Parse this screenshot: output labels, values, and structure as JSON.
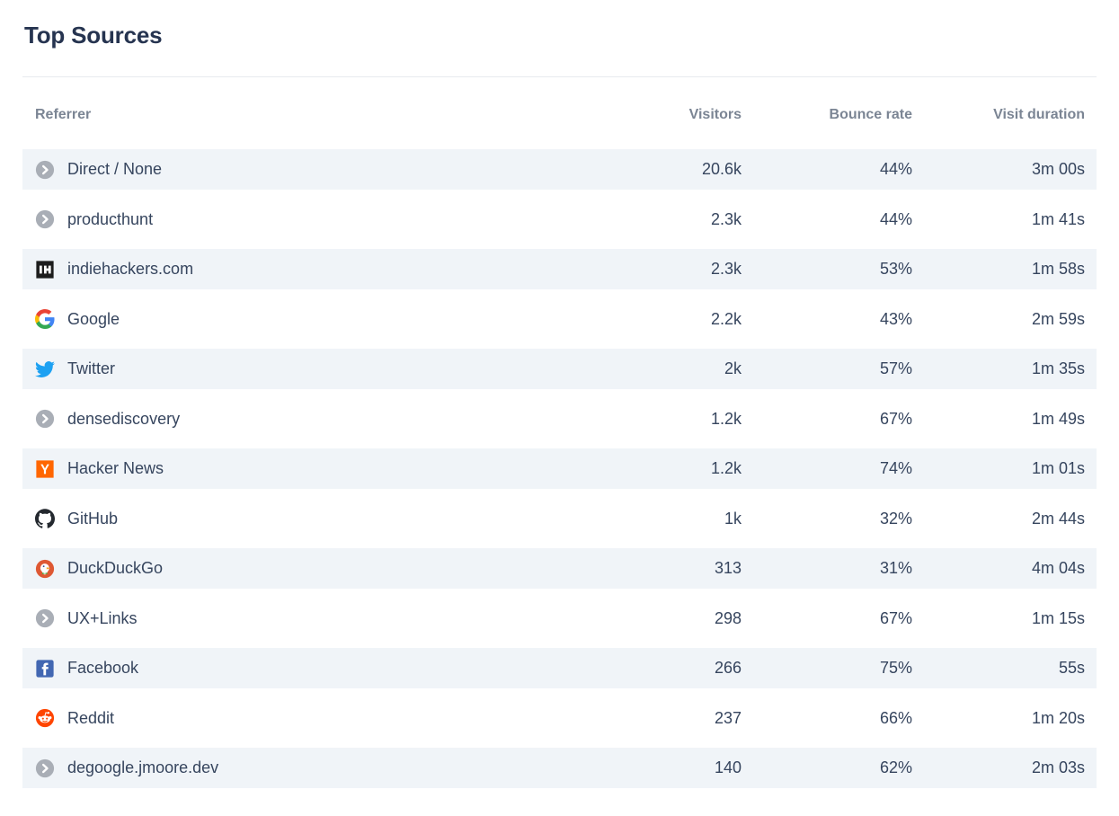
{
  "header": {
    "title": "Top Sources"
  },
  "table": {
    "columns": [
      "Referrer",
      "Visitors",
      "Bounce rate",
      "Visit duration"
    ],
    "rows": [
      {
        "referrer": "Direct / None",
        "icon": "chevron-circle",
        "visitors": "20.6k",
        "bounce_rate": "44%",
        "visit_duration": "3m 00s"
      },
      {
        "referrer": "producthunt",
        "icon": "chevron-circle",
        "visitors": "2.3k",
        "bounce_rate": "44%",
        "visit_duration": "1m 41s"
      },
      {
        "referrer": "indiehackers.com",
        "icon": "indiehackers",
        "visitors": "2.3k",
        "bounce_rate": "53%",
        "visit_duration": "1m 58s"
      },
      {
        "referrer": "Google",
        "icon": "google",
        "visitors": "2.2k",
        "bounce_rate": "43%",
        "visit_duration": "2m 59s"
      },
      {
        "referrer": "Twitter",
        "icon": "twitter",
        "visitors": "2k",
        "bounce_rate": "57%",
        "visit_duration": "1m 35s"
      },
      {
        "referrer": "densediscovery",
        "icon": "chevron-circle",
        "visitors": "1.2k",
        "bounce_rate": "67%",
        "visit_duration": "1m 49s"
      },
      {
        "referrer": "Hacker News",
        "icon": "hacker-news",
        "visitors": "1.2k",
        "bounce_rate": "74%",
        "visit_duration": "1m 01s"
      },
      {
        "referrer": "GitHub",
        "icon": "github",
        "visitors": "1k",
        "bounce_rate": "32%",
        "visit_duration": "2m 44s"
      },
      {
        "referrer": "DuckDuckGo",
        "icon": "duckduckgo",
        "visitors": "313",
        "bounce_rate": "31%",
        "visit_duration": "4m 04s"
      },
      {
        "referrer": "UX+Links",
        "icon": "chevron-circle",
        "visitors": "298",
        "bounce_rate": "67%",
        "visit_duration": "1m 15s"
      },
      {
        "referrer": "Facebook",
        "icon": "facebook",
        "visitors": "266",
        "bounce_rate": "75%",
        "visit_duration": "55s"
      },
      {
        "referrer": "Reddit",
        "icon": "reddit",
        "visitors": "237",
        "bounce_rate": "66%",
        "visit_duration": "1m 20s"
      },
      {
        "referrer": "degoogle.jmoore.dev",
        "icon": "chevron-circle",
        "visitors": "140",
        "bounce_rate": "62%",
        "visit_duration": "2m 03s"
      }
    ]
  },
  "chart_data": {
    "type": "table",
    "title": "Top Sources",
    "categories": [
      "Direct / None",
      "producthunt",
      "indiehackers.com",
      "Google",
      "Twitter",
      "densediscovery",
      "Hacker News",
      "GitHub",
      "DuckDuckGo",
      "UX+Links",
      "Facebook",
      "Reddit",
      "degoogle.jmoore.dev"
    ],
    "series": [
      {
        "name": "Visitors",
        "values": [
          20600,
          2300,
          2300,
          2200,
          2000,
          1200,
          1200,
          1000,
          313,
          298,
          266,
          237,
          140
        ]
      },
      {
        "name": "Bounce rate (%)",
        "values": [
          44,
          44,
          53,
          43,
          57,
          67,
          74,
          32,
          31,
          67,
          75,
          66,
          62
        ]
      },
      {
        "name": "Visit duration (s)",
        "values": [
          180,
          101,
          118,
          179,
          95,
          109,
          61,
          164,
          244,
          75,
          55,
          80,
          123
        ]
      }
    ]
  },
  "colors": {
    "title_text": "#263450",
    "header_text": "#7b8594",
    "row_text": "#36455e",
    "row_stripe_bg": "#f0f4f8",
    "divider": "#e7eaee",
    "generic_icon_bg": "#a9aeb6",
    "twitter_blue": "#1DA1F2",
    "hacker_news_orange": "#FF6600",
    "facebook_blue": "#4267B2",
    "reddit_orange": "#FF4500",
    "duckduckgo_red": "#DE5833",
    "github_black": "#24292f"
  }
}
